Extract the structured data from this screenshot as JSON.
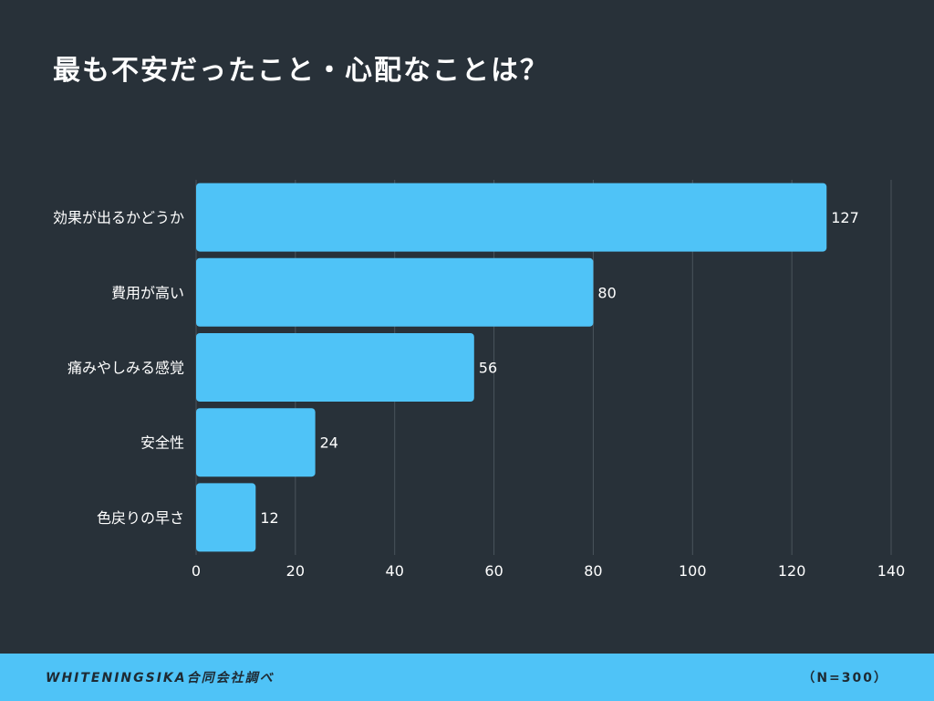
{
  "colors": {
    "background": "#283139",
    "bar": "#4fc3f7",
    "footer": "#4fc3f7",
    "text": "#ffffff",
    "grid": "#4a545c"
  },
  "footer": {
    "source": "WHITENINGSIKA合同会社調べ",
    "sample": "（N=300）"
  },
  "chart_data": {
    "type": "bar",
    "orientation": "horizontal",
    "title": "最も不安だったこと・心配なことは？",
    "categories": [
      "効果が出るかどうか",
      "費用が高い",
      "痛みやしみる感覚",
      "安全性",
      "色戻りの早さ"
    ],
    "values": [
      127,
      80,
      56,
      24,
      12
    ],
    "xlim": [
      0,
      140
    ],
    "xticks": [
      0,
      20,
      40,
      60,
      80,
      100,
      120,
      140
    ],
    "grid": true,
    "data_labels": true,
    "legend": "none"
  }
}
